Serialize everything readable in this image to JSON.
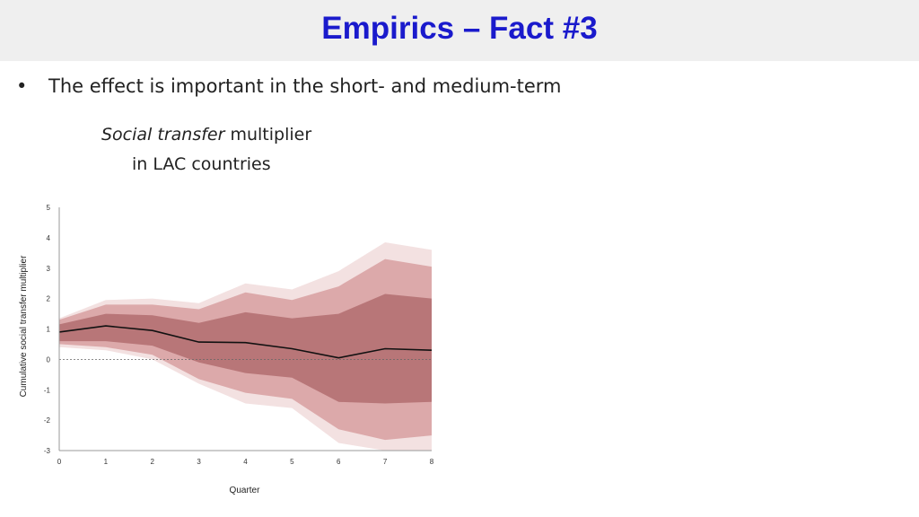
{
  "slide": {
    "title": "Empirics – Fact #3",
    "bullet": "The effect is important in the short- and medium-term",
    "subtitle_italic": "Social transfer",
    "subtitle_rest": " multiplier",
    "subtitle_line2": "in LAC countries"
  },
  "chart_data": {
    "type": "area",
    "x": [
      0,
      1,
      2,
      3,
      4,
      5,
      6,
      7,
      8
    ],
    "xlabel": "Quarter",
    "ylabel": "Cumulative social transfer multiplier",
    "xlim": [
      0,
      8
    ],
    "ylim": [
      -3,
      5
    ],
    "yticks": [
      5,
      4,
      3,
      2,
      1,
      0,
      -1,
      -2,
      -3
    ],
    "xticks": [
      0,
      1,
      2,
      3,
      4,
      5,
      6,
      7,
      8
    ],
    "zero_line": "dashed",
    "grid": false,
    "series": [
      {
        "values": [
          0.9,
          1.1,
          0.95,
          0.57,
          0.55,
          0.35,
          0.05,
          0.35,
          0.3
        ]
      }
    ],
    "bands": [
      {
        "level": "outer",
        "color": "#f3e1e1",
        "lower": [
          0.4,
          0.3,
          0.0,
          -0.8,
          -1.45,
          -1.6,
          -2.75,
          -3.0,
          -3.0
        ],
        "upper": [
          1.35,
          1.95,
          2.0,
          1.85,
          2.5,
          2.3,
          2.9,
          3.85,
          3.6
        ]
      },
      {
        "level": "middle",
        "color": "#dca9aa",
        "lower": [
          0.5,
          0.4,
          0.15,
          -0.65,
          -1.1,
          -1.3,
          -2.3,
          -2.65,
          -2.5
        ],
        "upper": [
          1.3,
          1.8,
          1.8,
          1.65,
          2.2,
          1.95,
          2.4,
          3.3,
          3.05
        ]
      },
      {
        "level": "inner",
        "color": "#b87678",
        "lower": [
          0.6,
          0.6,
          0.45,
          -0.1,
          -0.45,
          -0.6,
          -1.4,
          -1.45,
          -1.4
        ],
        "upper": [
          1.15,
          1.5,
          1.45,
          1.2,
          1.55,
          1.35,
          1.5,
          2.15,
          2.0
        ]
      }
    ]
  }
}
